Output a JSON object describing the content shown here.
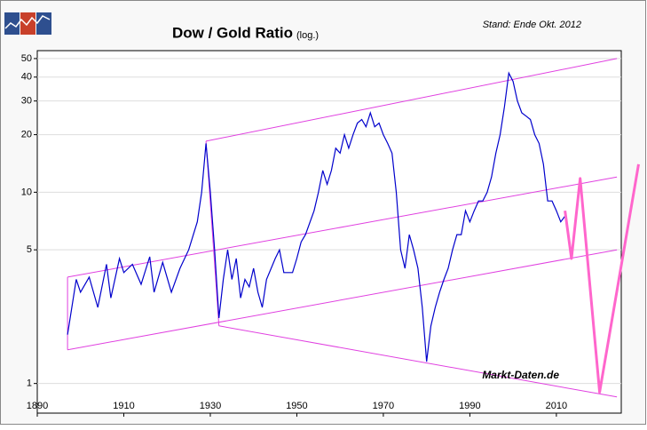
{
  "chart_data": {
    "type": "line",
    "title": "Dow / Gold Ratio",
    "subtitle": "(log.)",
    "annotations": [
      "Stand: Ende Okt. 2012",
      "Markt-Daten.de"
    ],
    "log_scale": true,
    "xlim": [
      1890,
      2025
    ],
    "ylim": [
      0.7,
      55
    ],
    "xticks": [
      1890,
      1910,
      1930,
      1950,
      1970,
      1990,
      2010
    ],
    "yticks": [
      1,
      5,
      10,
      20,
      30,
      40,
      50
    ],
    "x": [
      1897,
      1899,
      1900,
      1902,
      1904,
      1906,
      1907,
      1909,
      1910,
      1912,
      1914,
      1916,
      1917,
      1919,
      1921,
      1923,
      1925,
      1927,
      1928,
      1929,
      1930,
      1931,
      1932,
      1933,
      1934,
      1935,
      1936,
      1937,
      1938,
      1939,
      1940,
      1941,
      1942,
      1943,
      1945,
      1946,
      1947,
      1949,
      1950,
      1951,
      1952,
      1954,
      1955,
      1956,
      1957,
      1958,
      1959,
      1960,
      1961,
      1962,
      1963,
      1964,
      1965,
      1966,
      1967,
      1968,
      1969,
      1970,
      1971,
      1972,
      1973,
      1974,
      1975,
      1976,
      1977,
      1978,
      1979,
      1980,
      1981,
      1982,
      1983,
      1984,
      1985,
      1986,
      1987,
      1988,
      1989,
      1990,
      1991,
      1992,
      1993,
      1994,
      1995,
      1996,
      1997,
      1998,
      1999,
      2000,
      2001,
      2002,
      2003,
      2004,
      2005,
      2006,
      2007,
      2008,
      2009,
      2010,
      2011,
      2012
    ],
    "series": [
      {
        "color": "#0000cc",
        "values": [
          1.8,
          3.5,
          3.0,
          3.6,
          2.5,
          4.2,
          2.8,
          4.5,
          3.8,
          4.2,
          3.3,
          4.6,
          3.0,
          4.3,
          3.0,
          4.0,
          5.0,
          7.0,
          10,
          18,
          10,
          5,
          2.2,
          3.5,
          5,
          3.5,
          4.5,
          2.8,
          3.5,
          3.2,
          4.0,
          3.0,
          2.5,
          3.5,
          4.5,
          5,
          3.8,
          3.8,
          4.5,
          5.5,
          6,
          8,
          10,
          13,
          11,
          13,
          17,
          16,
          20,
          17,
          20,
          23,
          24,
          22,
          26,
          22,
          23,
          20,
          18,
          16,
          10,
          5,
          4,
          6,
          5,
          4,
          2.5,
          1.3,
          2,
          2.5,
          3,
          3.5,
          4,
          5,
          6,
          6,
          8,
          7,
          8,
          9,
          9,
          10,
          12,
          16,
          20,
          28,
          42,
          38,
          30,
          26,
          25,
          24,
          20,
          18,
          14,
          9,
          9,
          8,
          7,
          7.5
        ]
      }
    ],
    "channels": [
      {
        "color": "#e040e0",
        "x": [
          1929,
          2024
        ],
        "values": [
          18.5,
          50
        ]
      },
      {
        "color": "#e040e0",
        "x": [
          1897,
          2024
        ],
        "values": [
          3.6,
          12
        ]
      },
      {
        "color": "#e040e0",
        "x": [
          1897,
          2024
        ],
        "values": [
          1.5,
          5
        ]
      },
      {
        "color": "#e040e0",
        "x": [
          1932,
          2024
        ],
        "values": [
          2.0,
          0.85
        ]
      },
      {
        "color": "#e040e0",
        "x": [
          1897,
          1897
        ],
        "values": [
          1.5,
          3.6
        ]
      },
      {
        "color": "#e040e0",
        "x": [
          1929,
          1932
        ],
        "values": [
          18.5,
          2.0
        ]
      }
    ],
    "projection": {
      "color": "#ff66cc",
      "x": [
        2012,
        2013.5,
        2015.5,
        2020,
        2029
      ],
      "values": [
        8,
        4.5,
        11.8,
        0.9,
        14
      ]
    }
  }
}
